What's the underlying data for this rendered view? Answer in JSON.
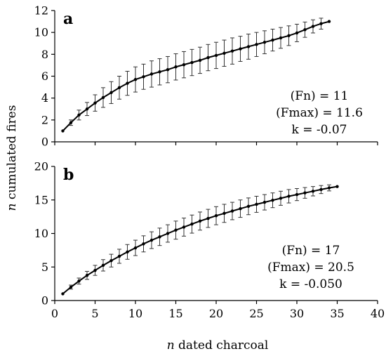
{
  "chart_data": [
    {
      "type": "line",
      "panel_label": "a",
      "x": [
        1,
        2,
        3,
        4,
        5,
        6,
        7,
        8,
        9,
        10,
        11,
        12,
        13,
        14,
        15,
        16,
        17,
        18,
        19,
        20,
        21,
        22,
        23,
        24,
        25,
        26,
        27,
        28,
        29,
        30,
        31,
        32,
        33,
        34
      ],
      "values": [
        1.0,
        1.75,
        2.45,
        3.0,
        3.55,
        4.05,
        4.5,
        4.95,
        5.35,
        5.7,
        5.95,
        6.2,
        6.4,
        6.6,
        6.85,
        7.05,
        7.25,
        7.45,
        7.7,
        7.9,
        8.1,
        8.3,
        8.5,
        8.7,
        8.9,
        9.1,
        9.3,
        9.5,
        9.7,
        9.95,
        10.25,
        10.55,
        10.8,
        11.0
      ],
      "error": [
        0,
        0.25,
        0.45,
        0.6,
        0.75,
        0.9,
        1.0,
        1.05,
        1.1,
        1.15,
        1.15,
        1.2,
        1.2,
        1.2,
        1.2,
        1.2,
        1.2,
        1.2,
        1.2,
        1.2,
        1.2,
        1.2,
        1.15,
        1.15,
        1.1,
        1.05,
        1.0,
        0.95,
        0.9,
        0.8,
        0.7,
        0.6,
        0.5,
        0
      ],
      "xlim": [
        0,
        40
      ],
      "ylim": [
        0,
        12
      ],
      "yticks": [
        "0",
        "2",
        "4",
        "6",
        "8",
        "10",
        "12"
      ],
      "annotation": [
        "(Fn) = 11",
        "(Fmax) = 11.6",
        "k = -0.07"
      ]
    },
    {
      "type": "line",
      "panel_label": "b",
      "x": [
        1,
        2,
        3,
        4,
        5,
        6,
        7,
        8,
        9,
        10,
        11,
        12,
        13,
        14,
        15,
        16,
        17,
        18,
        19,
        20,
        21,
        22,
        23,
        24,
        25,
        26,
        27,
        28,
        29,
        30,
        31,
        32,
        33,
        34,
        35
      ],
      "values": [
        1.0,
        2.0,
        2.9,
        3.75,
        4.5,
        5.25,
        5.95,
        6.6,
        7.25,
        7.85,
        8.45,
        9.0,
        9.5,
        10.0,
        10.5,
        10.95,
        11.4,
        11.85,
        12.25,
        12.65,
        13.0,
        13.35,
        13.7,
        14.05,
        14.35,
        14.65,
        14.95,
        15.25,
        15.55,
        15.8,
        16.05,
        16.3,
        16.55,
        16.8,
        17.0
      ],
      "error": [
        0,
        0.3,
        0.45,
        0.6,
        0.75,
        0.85,
        0.95,
        1.05,
        1.1,
        1.15,
        1.2,
        1.25,
        1.3,
        1.3,
        1.35,
        1.35,
        1.35,
        1.35,
        1.35,
        1.35,
        1.35,
        1.3,
        1.3,
        1.25,
        1.2,
        1.15,
        1.1,
        1.05,
        1.0,
        0.9,
        0.8,
        0.7,
        0.6,
        0.45,
        0
      ],
      "xlim": [
        0,
        40
      ],
      "ylim": [
        0,
        20
      ],
      "yticks": [
        "0",
        "5",
        "10",
        "15",
        "20"
      ],
      "annotation": [
        "(Fn) = 17",
        "(Fmax) = 20.5",
        "k = -0.050"
      ]
    }
  ],
  "axes": {
    "xticks": [
      "0",
      "5",
      "10",
      "15",
      "20",
      "25",
      "30",
      "35",
      "40"
    ],
    "xlabel_italic": "n",
    "xlabel_rest": " dated charcoal",
    "ylabel_italic": "n",
    "ylabel_rest": " cumulated fires"
  }
}
